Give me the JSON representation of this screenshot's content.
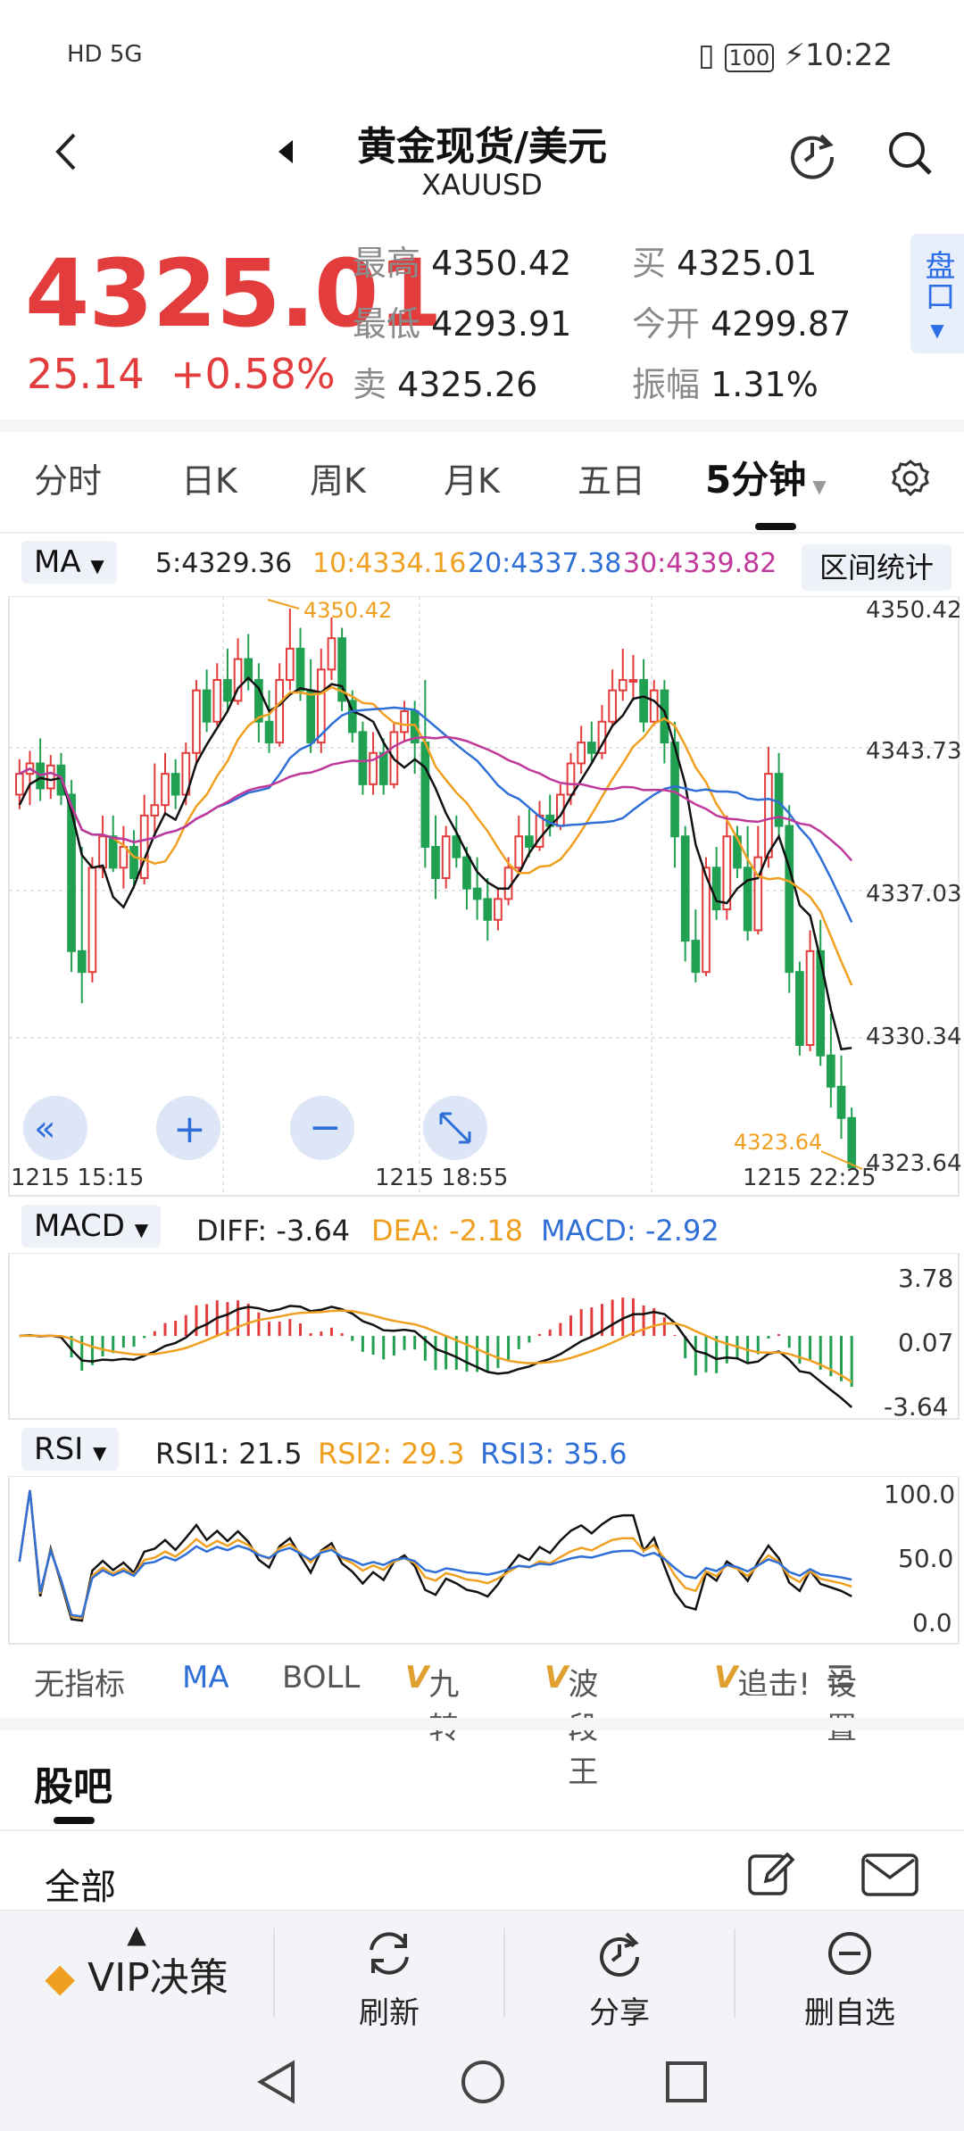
{
  "status_bar": {
    "left": "HD 5G",
    "time": "10:22",
    "battery": "100"
  },
  "header": {
    "title": "黄金现货/美元",
    "symbol": "XAUUSD"
  },
  "quote": {
    "price": "4325.01",
    "change": "25.14",
    "change_pct": "+0.58%",
    "high_label": "最高",
    "high": "4350.42",
    "low_label": "最低",
    "low": "4293.91",
    "sell_label": "卖",
    "sell": "4325.26",
    "buy_label": "买",
    "buy": "4325.01",
    "open_label": "今开",
    "open": "4299.87",
    "amp_label": "振幅",
    "amp": "1.31%",
    "pankou": "盘口"
  },
  "tabs": [
    "分时",
    "日K",
    "周K",
    "月K",
    "五日",
    "5分钟"
  ],
  "active_tab": "5分钟",
  "ma_header": {
    "label": "MA",
    "ma5": "5:4329.36",
    "ma10": "10:4334.16",
    "ma20": "20:4337.38",
    "ma30": "30:4339.82",
    "interval": "区间统计"
  },
  "price_axis": [
    "4350.42",
    "4343.73",
    "4337.03",
    "4330.34",
    "4323.64"
  ],
  "time_axis": [
    "1215  15:15",
    "1215  18:55",
    "1215  22:25"
  ],
  "annotations": {
    "high": "4350.42",
    "low": "4323.64"
  },
  "macd_header": {
    "label": "MACD",
    "diff": "DIFF: -3.64",
    "dea": "DEA: -2.18",
    "macd": "MACD: -2.92"
  },
  "macd_axis": [
    "3.78",
    "0.07",
    "-3.64"
  ],
  "rsi_header": {
    "label": "RSI",
    "rsi1": "RSI1: 21.5",
    "rsi2": "RSI2: 29.3",
    "rsi3": "RSI3: 35.6"
  },
  "rsi_axis": [
    "100.0",
    "50.0",
    "0.0"
  ],
  "indicator_tabs": [
    "无指标",
    "MA",
    "BOLL",
    "九转",
    "波段王",
    "追击!",
    "设置"
  ],
  "guba": "股吧",
  "all": "全部",
  "bottom_bar": {
    "vip": "VIP决策",
    "refresh": "刷新",
    "share": "分享",
    "remove": "删自选"
  },
  "colors": {
    "up": "#e23c3c",
    "down": "#21a052",
    "ma5": "#111111",
    "ma10": "#f0a020",
    "ma20": "#2f6fd6",
    "ma30": "#c0389a"
  },
  "chart_data": {
    "type": "candlestick",
    "x_label": "5分钟",
    "ylim": [
      4323.64,
      4350.42
    ],
    "candles": [
      [
        4341.5,
        4342.5,
        4340.8,
        4343.2
      ],
      [
        4342.5,
        4343.0,
        4341.0,
        4343.6
      ],
      [
        4343.0,
        4341.8,
        4341.2,
        4344.2
      ],
      [
        4341.8,
        4342.9,
        4341.3,
        4343.4
      ],
      [
        4342.9,
        4341.5,
        4341.0,
        4343.5
      ],
      [
        4341.5,
        4334.0,
        4333.0,
        4342.2
      ],
      [
        4334.0,
        4333.0,
        4331.5,
        4339.0
      ],
      [
        4333.0,
        4338.0,
        4332.5,
        4338.5
      ],
      [
        4338.0,
        4339.5,
        4337.5,
        4340.5
      ],
      [
        4339.5,
        4338.0,
        4337.8,
        4340.5
      ],
      [
        4338.0,
        4339.0,
        4337.0,
        4340.0
      ],
      [
        4339.0,
        4337.5,
        4337.0,
        4339.8
      ],
      [
        4337.5,
        4340.5,
        4337.2,
        4341.5
      ],
      [
        4340.5,
        4341.0,
        4339.5,
        4343.0
      ],
      [
        4341.0,
        4342.5,
        4340.5,
        4343.5
      ],
      [
        4342.5,
        4341.5,
        4340.8,
        4343.2
      ],
      [
        4341.5,
        4343.5,
        4341.0,
        4344.0
      ],
      [
        4343.5,
        4346.5,
        4343.0,
        4347.0
      ],
      [
        4346.5,
        4345.0,
        4344.5,
        4347.5
      ],
      [
        4345.0,
        4347.0,
        4344.8,
        4347.8
      ],
      [
        4347.0,
        4346.0,
        4345.5,
        4348.5
      ],
      [
        4346.0,
        4348.0,
        4345.8,
        4349.0
      ],
      [
        4348.0,
        4347.0,
        4346.5,
        4349.2
      ],
      [
        4347.0,
        4345.0,
        4344.0,
        4347.8
      ],
      [
        4345.0,
        4344.0,
        4343.5,
        4346.5
      ],
      [
        4344.0,
        4347.0,
        4343.8,
        4347.8
      ],
      [
        4347.0,
        4348.5,
        4346.5,
        4350.42
      ],
      [
        4348.5,
        4346.5,
        4346.0,
        4349.5
      ],
      [
        4346.5,
        4344.0,
        4343.5,
        4348.0
      ],
      [
        4344.0,
        4347.5,
        4343.5,
        4348.5
      ],
      [
        4347.5,
        4349.0,
        4347.0,
        4350.0
      ],
      [
        4349.0,
        4346.0,
        4345.5,
        4349.5
      ],
      [
        4346.0,
        4344.5,
        4344.0,
        4346.5
      ],
      [
        4344.5,
        4342.0,
        4341.5,
        4345.0
      ],
      [
        4342.0,
        4343.5,
        4341.5,
        4344.5
      ],
      [
        4343.5,
        4342.0,
        4341.5,
        4344.2
      ],
      [
        4342.0,
        4344.5,
        4341.8,
        4345.0
      ],
      [
        4344.5,
        4345.5,
        4344.0,
        4346.0
      ],
      [
        4345.5,
        4344.0,
        4342.5,
        4346.0
      ],
      [
        4344.0,
        4339.0,
        4338.0,
        4347.0
      ],
      [
        4339.0,
        4337.5,
        4336.5,
        4340.5
      ],
      [
        4337.5,
        4339.5,
        4337.0,
        4340.0
      ],
      [
        4339.5,
        4338.5,
        4338.0,
        4340.5
      ],
      [
        4338.5,
        4337.0,
        4336.0,
        4339.0
      ],
      [
        4337.0,
        4336.5,
        4335.5,
        4338.5
      ],
      [
        4336.5,
        4335.5,
        4334.5,
        4337.5
      ],
      [
        4335.5,
        4336.5,
        4335.0,
        4337.0
      ],
      [
        4336.5,
        4338.0,
        4336.2,
        4338.5
      ],
      [
        4338.0,
        4339.5,
        4337.8,
        4340.5
      ],
      [
        4339.5,
        4339.0,
        4338.5,
        4340.8
      ],
      [
        4339.0,
        4340.5,
        4338.8,
        4341.2
      ],
      [
        4340.5,
        4340.0,
        4339.5,
        4341.5
      ],
      [
        4340.0,
        4341.5,
        4339.8,
        4342.0
      ],
      [
        4341.5,
        4343.0,
        4341.0,
        4343.5
      ],
      [
        4343.0,
        4344.0,
        4342.5,
        4344.8
      ],
      [
        4344.0,
        4343.5,
        4343.0,
        4345.0
      ],
      [
        4343.5,
        4345.0,
        4343.2,
        4345.8
      ],
      [
        4345.0,
        4346.5,
        4344.8,
        4347.5
      ],
      [
        4346.5,
        4347.0,
        4346.0,
        4348.5
      ],
      [
        4347.0,
        4347.0,
        4346.0,
        4348.2
      ],
      [
        4347.0,
        4345.0,
        4344.5,
        4348.0
      ],
      [
        4345.0,
        4346.5,
        4344.8,
        4347.0
      ],
      [
        4346.5,
        4344.0,
        4343.0,
        4347.0
      ],
      [
        4344.0,
        4339.5,
        4338.0,
        4345.0
      ],
      [
        4339.5,
        4334.5,
        4333.5,
        4340.0
      ],
      [
        4334.5,
        4333.0,
        4332.5,
        4336.0
      ],
      [
        4333.0,
        4338.0,
        4332.8,
        4338.5
      ],
      [
        4338.0,
        4336.0,
        4335.5,
        4339.0
      ],
      [
        4336.0,
        4339.5,
        4335.5,
        4340.5
      ],
      [
        4339.5,
        4338.0,
        4337.5,
        4340.0
      ],
      [
        4338.0,
        4335.0,
        4334.5,
        4340.0
      ],
      [
        4335.0,
        4338.5,
        4334.8,
        4340.0
      ],
      [
        4338.5,
        4342.5,
        4338.0,
        4343.8
      ],
      [
        4342.5,
        4340.0,
        4339.5,
        4343.5
      ],
      [
        4340.0,
        4333.0,
        4332.0,
        4341.0
      ],
      [
        4333.0,
        4329.5,
        4329.0,
        4333.5
      ],
      [
        4329.5,
        4334.0,
        4329.2,
        4335.0
      ],
      [
        4334.0,
        4329.0,
        4328.5,
        4335.5
      ],
      [
        4329.0,
        4327.5,
        4326.5,
        4331.0
      ],
      [
        4327.5,
        4326.0,
        4325.0,
        4329.0
      ],
      [
        4326.0,
        4323.64,
        4323.64,
        4326.5
      ]
    ],
    "ma5": [
      4341,
      4342,
      4342.3,
      4342.2,
      4342.3,
      4340.7,
      4338.6,
      4338.0,
      4338.1,
      4336.6,
      4336.1,
      4337.1,
      4338.4,
      4339.6,
      4340.6,
      4340.3,
      4341.4,
      4343.0,
      4343.9,
      4344.7,
      4345.5,
      4346.6,
      4347.1,
      4346.6,
      4345.5,
      4345.8,
      4346.3,
      4346.6,
      4346.5,
      4346.4,
      4346.8,
      4346.7,
      4345.5,
      4345.3,
      4345.0,
      4344.0,
      4343.2,
      4342.8,
      4343.2,
      4342.8,
      4341.8,
      4340.6,
      4339.7,
      4338.7,
      4337.8,
      4337.3,
      4337.0,
      4337.0,
      4337.7,
      4338.7,
      4339.4,
      4340.0,
      4340.5,
      4341.4,
      4342.2,
      4343.0,
      4343.9,
      4344.8,
      4345.3,
      4346.1,
      4346.2,
      4346.0,
      4345.5,
      4343.8,
      4342.0,
      4339.1,
      4337.6,
      4336.4,
      4336.3,
      4337.0,
      4337.4,
      4337.5,
      4338.7,
      4339.5,
      4338.0,
      4336.2,
      4335.7,
      4333.6,
      4331.2,
      4329.3,
      4329.36
    ]
  }
}
